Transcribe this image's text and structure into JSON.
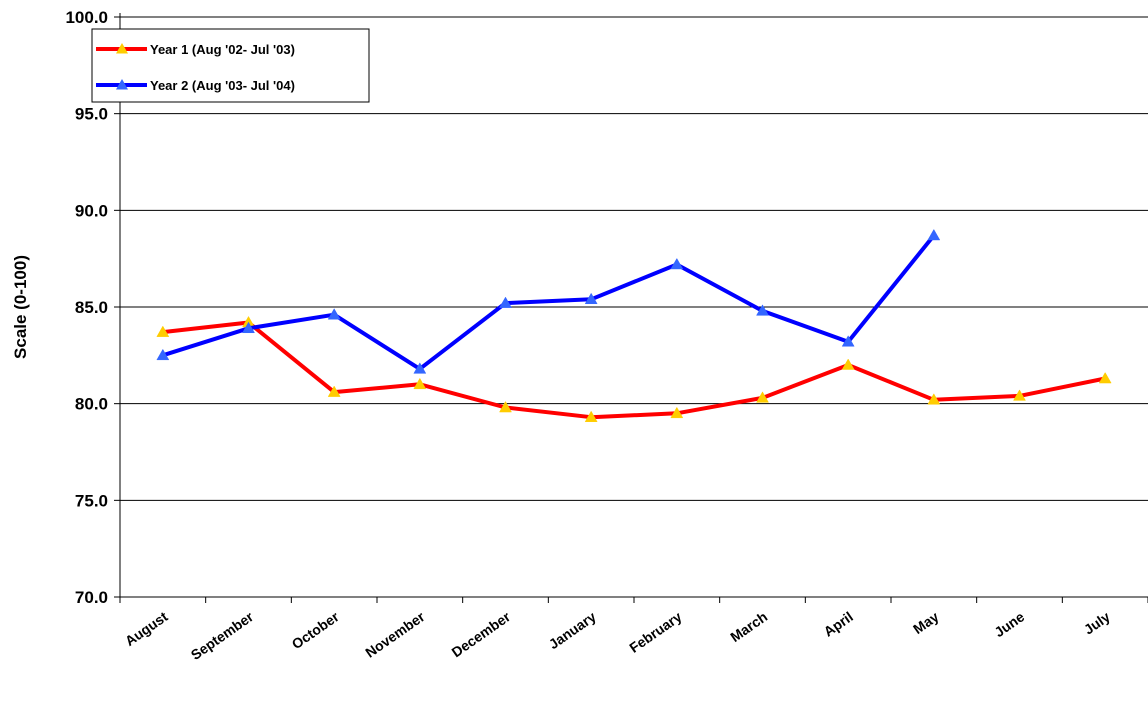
{
  "chart_data": {
    "type": "line",
    "title": "",
    "xlabel": "",
    "ylabel": "Scale (0-100)",
    "ylim": [
      70,
      100
    ],
    "ytick_step": 5,
    "ytick_labels": [
      "70.0",
      "75.0",
      "80.0",
      "85.0",
      "90.0",
      "95.0",
      "100.0"
    ],
    "grid": true,
    "legend_position": "top-left",
    "categories": [
      "August",
      "September",
      "October",
      "November",
      "December",
      "January",
      "February",
      "March",
      "April",
      "May",
      "June",
      "July"
    ],
    "series": [
      {
        "name": "Year 1 (Aug '02- Jul '03)",
        "line_color": "#ff0000",
        "marker_color": "#ffcc00",
        "values": [
          83.7,
          84.2,
          80.6,
          81.0,
          79.8,
          79.3,
          79.5,
          80.3,
          82.0,
          80.2,
          80.4,
          81.3
        ]
      },
      {
        "name": "Year 2 (Aug '03- Jul '04)",
        "line_color": "#0000ff",
        "marker_color": "#3366ff",
        "values": [
          82.5,
          83.9,
          84.6,
          81.8,
          85.2,
          85.4,
          87.2,
          84.8,
          83.2,
          88.7,
          null,
          null
        ]
      }
    ]
  }
}
